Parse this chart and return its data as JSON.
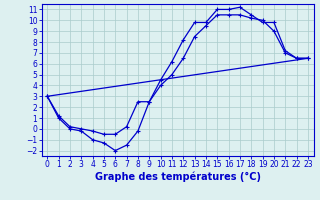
{
  "xlabel": "Graphe des températures (°C)",
  "background_color": "#ddf0f0",
  "line_color": "#0000cc",
  "xlim": [
    -0.5,
    23.5
  ],
  "ylim": [
    -2.5,
    11.5
  ],
  "xticks": [
    0,
    1,
    2,
    3,
    4,
    5,
    6,
    7,
    8,
    9,
    10,
    11,
    12,
    13,
    14,
    15,
    16,
    17,
    18,
    19,
    20,
    21,
    22,
    23
  ],
  "yticks": [
    -2,
    -1,
    0,
    1,
    2,
    3,
    4,
    5,
    6,
    7,
    8,
    9,
    10,
    11
  ],
  "line1_x": [
    0,
    1,
    2,
    3,
    4,
    5,
    6,
    7,
    8,
    9,
    10,
    11,
    12,
    13,
    14,
    15,
    16,
    17,
    18,
    19,
    20,
    21,
    22,
    23
  ],
  "line1_y": [
    3.0,
    1.0,
    0.0,
    -0.2,
    -1.0,
    -1.3,
    -2.0,
    -1.5,
    -0.2,
    2.5,
    4.5,
    6.2,
    8.2,
    9.8,
    9.8,
    11.0,
    11.0,
    11.2,
    10.5,
    9.8,
    9.8,
    7.2,
    6.5,
    6.5
  ],
  "line2_x": [
    0,
    23
  ],
  "line2_y": [
    3.0,
    6.5
  ],
  "line3_x": [
    0,
    1,
    2,
    3,
    4,
    5,
    6,
    7,
    8,
    9,
    10,
    11,
    12,
    13,
    14,
    15,
    16,
    17,
    18,
    19,
    20,
    21,
    22,
    23
  ],
  "line3_y": [
    3.0,
    1.2,
    0.2,
    0.0,
    -0.2,
    -0.5,
    -0.5,
    0.2,
    2.5,
    2.5,
    4.0,
    5.0,
    6.5,
    8.5,
    9.5,
    10.5,
    10.5,
    10.5,
    10.2,
    10.0,
    9.0,
    7.0,
    6.5,
    6.5
  ],
  "grid_color": "#aacccc",
  "tick_fontsize": 5.5,
  "label_fontsize": 7,
  "marker": "+",
  "markersize": 3,
  "linewidth": 0.9
}
